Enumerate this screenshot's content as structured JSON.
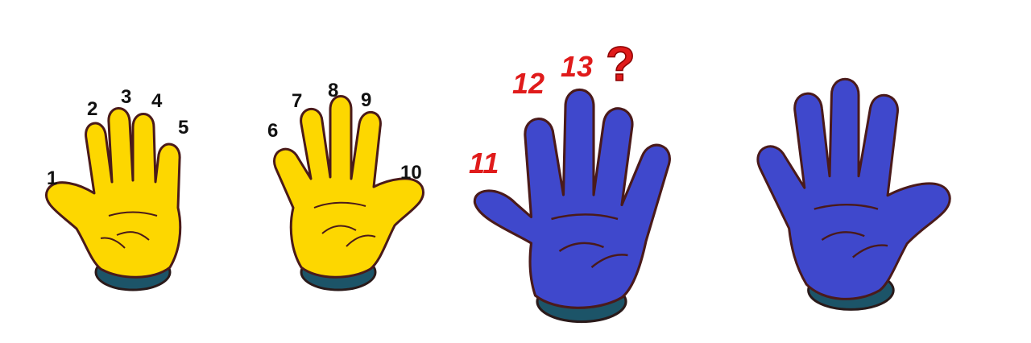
{
  "colors": {
    "yellow_hand": "#fdd700",
    "blue_hand": "#3f48cc",
    "outline": "#4a1a1a",
    "cuff": "#1c5468",
    "black_number": "#111111",
    "red_number": "#e01b1b"
  },
  "hands": [
    {
      "color": "yellow",
      "numbers": [
        "1",
        "2",
        "3",
        "4",
        "5"
      ]
    },
    {
      "color": "yellow",
      "numbers": [
        "6",
        "7",
        "8",
        "9",
        "10"
      ]
    },
    {
      "color": "blue",
      "numbers": [
        "11",
        "12",
        "13"
      ],
      "question_mark": "?"
    },
    {
      "color": "blue",
      "numbers": []
    }
  ]
}
